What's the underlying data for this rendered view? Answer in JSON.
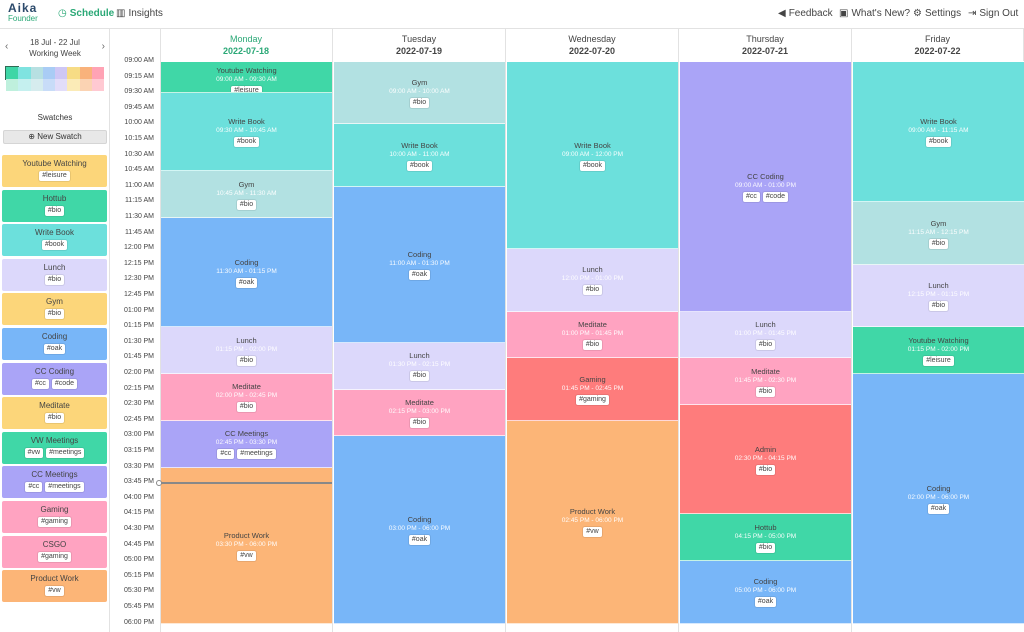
{
  "app": {
    "logo_name": "Aika",
    "logo_sub": "Founder"
  },
  "nav": {
    "schedule": "Schedule",
    "insights": "Insights",
    "feedback": "Feedback",
    "whats_new": "What's New?",
    "settings": "Settings",
    "sign_out": "Sign Out"
  },
  "sidebar": {
    "week_range": "18 Jul - 22 Jul",
    "week_type": "Working Week",
    "palette": [
      "#3ed6a6",
      "#7fe3e0",
      "#b7e0e2",
      "#a9ccf5",
      "#cec7f5",
      "#f7dc85",
      "#f9b27b",
      "#ffa3b5",
      "#bff0dd",
      "#c5f0ef",
      "#d6ecee",
      "#c8dcf8",
      "#e2ddf9",
      "#fbebb7",
      "#fbd3b3",
      "#ffc9d2"
    ],
    "swatches_title": "Swatches",
    "new_swatch": "New Swatch",
    "swatches": [
      {
        "name": "Youtube Watching",
        "tags": [
          "#leisure"
        ],
        "color": "#fcd67a"
      },
      {
        "name": "Hottub",
        "tags": [
          "#bio"
        ],
        "color": "#40d7a7"
      },
      {
        "name": "Write Book",
        "tags": [
          "#book"
        ],
        "color": "#6ce0dc"
      },
      {
        "name": "Lunch",
        "tags": [
          "#bio"
        ],
        "color": "#dcd8fb"
      },
      {
        "name": "Gym",
        "tags": [
          "#bio"
        ],
        "color": "#fcd67a"
      },
      {
        "name": "Coding",
        "tags": [
          "#oak"
        ],
        "color": "#78b6f8"
      },
      {
        "name": "CC Coding",
        "tags": [
          "#cc",
          "#code"
        ],
        "color": "#aaa4f7"
      },
      {
        "name": "Meditate",
        "tags": [
          "#bio"
        ],
        "color": "#fcd67a"
      },
      {
        "name": "VW Meetings",
        "tags": [
          "#vw",
          "#meetings"
        ],
        "color": "#40d7a7"
      },
      {
        "name": "CC Meetings",
        "tags": [
          "#cc",
          "#meetings"
        ],
        "color": "#aaa4f7"
      },
      {
        "name": "Gaming",
        "tags": [
          "#gaming"
        ],
        "color": "#ffa3c1"
      },
      {
        "name": "CSGO",
        "tags": [
          "#gaming"
        ],
        "color": "#ffa3c1"
      },
      {
        "name": "Product Work",
        "tags": [
          "#vw"
        ],
        "color": "#fcb577"
      }
    ]
  },
  "times": [
    "09:00 AM",
    "09:15 AM",
    "09:30 AM",
    "09:45 AM",
    "10:00 AM",
    "10:15 AM",
    "10:30 AM",
    "10:45 AM",
    "11:00 AM",
    "11:15 AM",
    "11:30 AM",
    "11:45 AM",
    "12:00 PM",
    "12:15 PM",
    "12:30 PM",
    "12:45 PM",
    "01:00 PM",
    "01:15 PM",
    "01:30 PM",
    "01:45 PM",
    "02:00 PM",
    "02:15 PM",
    "02:30 PM",
    "02:45 PM",
    "03:00 PM",
    "03:15 PM",
    "03:30 PM",
    "03:45 PM",
    "04:00 PM",
    "04:15 PM",
    "04:30 PM",
    "04:45 PM",
    "05:00 PM",
    "05:15 PM",
    "05:30 PM",
    "05:45 PM",
    "06:00 PM"
  ],
  "days": [
    {
      "name": "Monday",
      "date": "2022-07-18",
      "today": true,
      "events": [
        {
          "title": "Youtube Watching",
          "time": "09:00 AM - 09:30 AM",
          "tags": [
            "#leisure"
          ],
          "color": "#40d7a7",
          "start": 0,
          "end": 2
        },
        {
          "title": "Write Book",
          "time": "09:30 AM - 10:45 AM",
          "tags": [
            "#book"
          ],
          "color": "#6ce0dc",
          "start": 2,
          "end": 7
        },
        {
          "title": "Gym",
          "time": "10:45 AM - 11:30 AM",
          "tags": [
            "#bio"
          ],
          "color": "#b2e1e2",
          "start": 7,
          "end": 10
        },
        {
          "title": "Coding",
          "time": "11:30 AM - 01:15 PM",
          "tags": [
            "#oak"
          ],
          "color": "#78b6f8",
          "start": 10,
          "end": 17
        },
        {
          "title": "Lunch",
          "time": "01:15 PM - 02:00 PM",
          "tags": [
            "#bio"
          ],
          "color": "#dcd8fb",
          "start": 17,
          "end": 20
        },
        {
          "title": "Meditate",
          "time": "02:00 PM - 02:45 PM",
          "tags": [
            "#bio"
          ],
          "color": "#ffa3c1",
          "start": 20,
          "end": 23
        },
        {
          "title": "CC Meetings",
          "time": "02:45 PM - 03:30 PM",
          "tags": [
            "#cc",
            "#meetings"
          ],
          "color": "#aaa4f7",
          "start": 23,
          "end": 26
        },
        {
          "title": "Product Work",
          "time": "03:30 PM - 06:00 PM",
          "tags": [
            "#vw"
          ],
          "color": "#fcb577",
          "start": 26,
          "end": 36
        }
      ]
    },
    {
      "name": "Tuesday",
      "date": "2022-07-19",
      "today": false,
      "events": [
        {
          "title": "Gym",
          "time": "09:00 AM - 10:00 AM",
          "tags": [
            "#bio"
          ],
          "color": "#b2e1e2",
          "start": 0,
          "end": 4
        },
        {
          "title": "Write Book",
          "time": "10:00 AM - 11:00 AM",
          "tags": [
            "#book"
          ],
          "color": "#6ce0dc",
          "start": 4,
          "end": 8
        },
        {
          "title": "Coding",
          "time": "11:00 AM - 01:30 PM",
          "tags": [
            "#oak"
          ],
          "color": "#78b6f8",
          "start": 8,
          "end": 18
        },
        {
          "title": "Lunch",
          "time": "01:30 PM - 02:15 PM",
          "tags": [
            "#bio"
          ],
          "color": "#dcd8fb",
          "start": 18,
          "end": 21
        },
        {
          "title": "Meditate",
          "time": "02:15 PM - 03:00 PM",
          "tags": [
            "#bio"
          ],
          "color": "#ffa3c1",
          "start": 21,
          "end": 24
        },
        {
          "title": "Coding",
          "time": "03:00 PM - 06:00 PM",
          "tags": [
            "#oak"
          ],
          "color": "#78b6f8",
          "start": 24,
          "end": 36
        }
      ]
    },
    {
      "name": "Wednesday",
      "date": "2022-07-20",
      "today": false,
      "events": [
        {
          "title": "Write Book",
          "time": "09:00 AM - 12:00 PM",
          "tags": [
            "#book"
          ],
          "color": "#6ce0dc",
          "start": 0,
          "end": 12
        },
        {
          "title": "Lunch",
          "time": "12:00 PM - 01:00 PM",
          "tags": [
            "#bio"
          ],
          "color": "#dcd8fb",
          "start": 12,
          "end": 16
        },
        {
          "title": "Meditate",
          "time": "01:00 PM - 01:45 PM",
          "tags": [
            "#bio"
          ],
          "color": "#ffa3c1",
          "start": 16,
          "end": 19
        },
        {
          "title": "Gaming",
          "time": "01:45 PM - 02:45 PM",
          "tags": [
            "#gaming"
          ],
          "color": "#fe7c7c",
          "start": 19,
          "end": 23
        },
        {
          "title": "Product Work",
          "time": "02:45 PM - 06:00 PM",
          "tags": [
            "#vw"
          ],
          "color": "#fcb577",
          "start": 23,
          "end": 36
        }
      ]
    },
    {
      "name": "Thursday",
      "date": "2022-07-21",
      "today": false,
      "events": [
        {
          "title": "CC Coding",
          "time": "09:00 AM - 01:00 PM",
          "tags": [
            "#cc",
            "#code"
          ],
          "color": "#aaa4f7",
          "start": 0,
          "end": 16
        },
        {
          "title": "Lunch",
          "time": "01:00 PM - 01:45 PM",
          "tags": [
            "#bio"
          ],
          "color": "#dcd8fb",
          "start": 16,
          "end": 19
        },
        {
          "title": "Meditate",
          "time": "01:45 PM - 02:30 PM",
          "tags": [
            "#bio"
          ],
          "color": "#ffa3c1",
          "start": 19,
          "end": 22
        },
        {
          "title": "Admin",
          "time": "02:30 PM - 04:15 PM",
          "tags": [
            "#bio"
          ],
          "color": "#fe7c7c",
          "start": 22,
          "end": 29
        },
        {
          "title": "Hottub",
          "time": "04:15 PM - 05:00 PM",
          "tags": [
            "#bio"
          ],
          "color": "#40d7a7",
          "start": 29,
          "end": 32
        },
        {
          "title": "Coding",
          "time": "05:00 PM - 06:00 PM",
          "tags": [
            "#oak"
          ],
          "color": "#78b6f8",
          "start": 32,
          "end": 36
        }
      ]
    },
    {
      "name": "Friday",
      "date": "2022-07-22",
      "today": false,
      "events": [
        {
          "title": "Write Book",
          "time": "09:00 AM - 11:15 AM",
          "tags": [
            "#book"
          ],
          "color": "#6ce0dc",
          "start": 0,
          "end": 9
        },
        {
          "title": "Gym",
          "time": "11:15 AM - 12:15 PM",
          "tags": [
            "#bio"
          ],
          "color": "#b2e1e2",
          "start": 9,
          "end": 13
        },
        {
          "title": "Lunch",
          "time": "12:15 PM - 01:15 PM",
          "tags": [
            "#bio"
          ],
          "color": "#dcd8fb",
          "start": 13,
          "end": 17
        },
        {
          "title": "Youtube Watching",
          "time": "01:15 PM - 02:00 PM",
          "tags": [
            "#leisure"
          ],
          "color": "#40d7a7",
          "start": 17,
          "end": 20
        },
        {
          "title": "Coding",
          "time": "02:00 PM - 06:00 PM",
          "tags": [
            "#oak"
          ],
          "color": "#78b6f8",
          "start": 20,
          "end": 36
        }
      ]
    }
  ]
}
